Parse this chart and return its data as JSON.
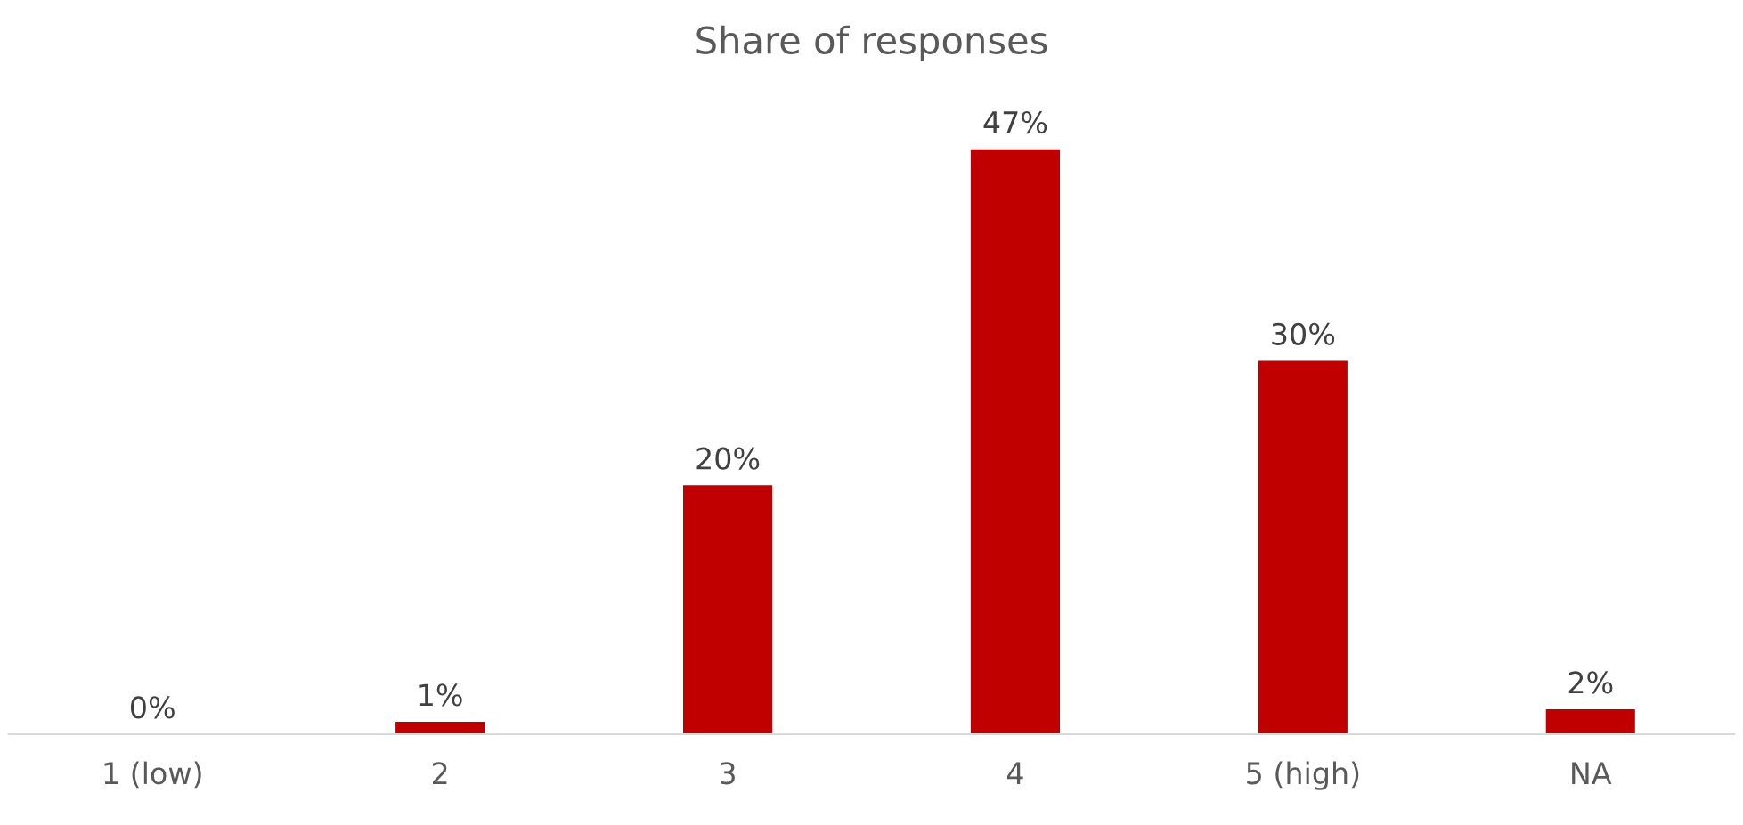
{
  "chart_data": {
    "type": "bar",
    "title": "Share of responses",
    "categories": [
      "1 (low)",
      "2",
      "3",
      "4",
      "5 (high)",
      "NA"
    ],
    "values": [
      0,
      1,
      20,
      47,
      30,
      2
    ],
    "value_labels": [
      "0%",
      "1%",
      "20%",
      "47%",
      "30%",
      "2%"
    ],
    "color": "#c00000",
    "grid": false,
    "legend": false
  }
}
